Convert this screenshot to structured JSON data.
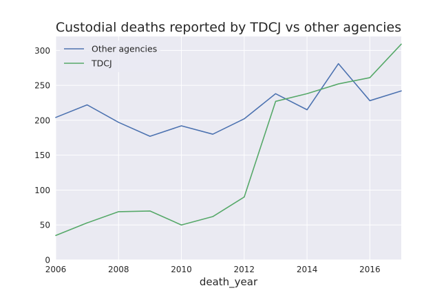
{
  "chart_data": {
    "type": "line",
    "title": "Custodial deaths reported by TDCJ vs other agencies",
    "xlabel": "death_year",
    "ylabel": "",
    "x": [
      2006,
      2007,
      2008,
      2009,
      2010,
      2011,
      2012,
      2013,
      2014,
      2015,
      2016,
      2017
    ],
    "series": [
      {
        "name": "Other agencies",
        "color": "#4c72b0",
        "values": [
          204,
          222,
          197,
          177,
          192,
          180,
          202,
          238,
          215,
          281,
          228,
          242
        ]
      },
      {
        "name": "TDCJ",
        "color": "#55a868",
        "values": [
          35,
          53,
          69,
          70,
          50,
          62,
          90,
          227,
          238,
          252,
          261,
          309
        ]
      }
    ],
    "xlim": [
      2006,
      2017
    ],
    "ylim": [
      0,
      320
    ],
    "xticks": [
      2006,
      2008,
      2010,
      2012,
      2014,
      2016
    ],
    "yticks": [
      0,
      50,
      100,
      150,
      200,
      250,
      300
    ],
    "grid": true,
    "legend_position": "top-left",
    "background_color": "#eaeaf2",
    "grid_color": "#ffffff"
  }
}
